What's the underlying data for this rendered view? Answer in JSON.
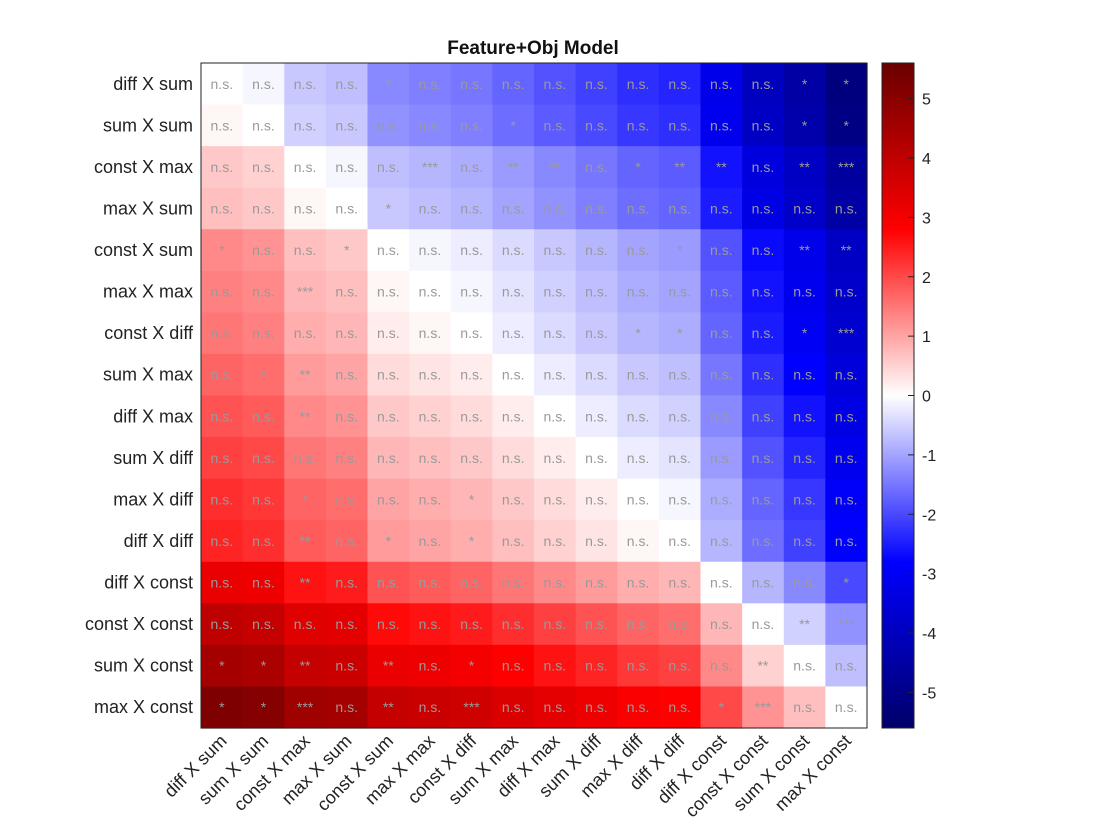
{
  "chart_data": {
    "type": "heatmap",
    "title": "Feature+Obj Model",
    "rows": [
      "diff X sum",
      "sum X sum",
      "const X max",
      "max X sum",
      "const X sum",
      "max X max",
      "const X diff",
      "sum X max",
      "diff X max",
      "sum X diff",
      "max X diff",
      "diff X diff",
      "diff X const",
      "const X const",
      "sum X const",
      "max X const"
    ],
    "columns": [
      "diff X sum",
      "sum X sum",
      "const X max",
      "max X sum",
      "const X sum",
      "max X max",
      "const X diff",
      "sum X max",
      "diff X max",
      "sum X diff",
      "max X diff",
      "diff X diff",
      "diff X const",
      "const X const",
      "sum X const",
      "max X const"
    ],
    "values": [
      [
        0,
        -0.1,
        -0.6,
        -0.7,
        -1.3,
        -1.4,
        -1.5,
        -1.7,
        -1.9,
        -2.1,
        -2.3,
        -2.4,
        -3.2,
        -4.0,
        -4.5,
        -5.2
      ],
      [
        0.1,
        0,
        -0.5,
        -0.6,
        -1.2,
        -1.3,
        -1.4,
        -1.6,
        -1.8,
        -2.0,
        -2.2,
        -2.3,
        -3.1,
        -3.9,
        -4.4,
        -5.1
      ],
      [
        0.6,
        0.5,
        0,
        -0.1,
        -0.7,
        -0.8,
        -0.9,
        -1.1,
        -1.3,
        -1.5,
        -1.7,
        -1.8,
        -2.6,
        -3.4,
        -3.9,
        -4.6
      ],
      [
        0.7,
        0.6,
        0.1,
        0,
        -0.6,
        -0.7,
        -0.8,
        -1.0,
        -1.2,
        -1.4,
        -1.6,
        -1.7,
        -2.5,
        -3.3,
        -3.8,
        -4.5
      ],
      [
        1.3,
        1.2,
        0.7,
        0.6,
        0,
        -0.1,
        -0.2,
        -0.4,
        -0.6,
        -0.8,
        -1.0,
        -1.1,
        -1.9,
        -2.7,
        -3.2,
        -3.9
      ],
      [
        1.4,
        1.3,
        0.8,
        0.7,
        0.1,
        0,
        -0.1,
        -0.3,
        -0.5,
        -0.7,
        -0.9,
        -1.0,
        -1.8,
        -2.6,
        -3.1,
        -3.8
      ],
      [
        1.5,
        1.4,
        0.9,
        0.8,
        0.2,
        0.1,
        0,
        -0.2,
        -0.4,
        -0.6,
        -0.8,
        -0.9,
        -1.7,
        -2.5,
        -3.0,
        -3.7
      ],
      [
        1.7,
        1.6,
        1.1,
        1.0,
        0.4,
        0.3,
        0.2,
        0,
        -0.2,
        -0.4,
        -0.6,
        -0.7,
        -1.5,
        -2.3,
        -2.8,
        -3.5
      ],
      [
        1.9,
        1.8,
        1.3,
        1.2,
        0.6,
        0.5,
        0.4,
        0.2,
        0,
        -0.2,
        -0.4,
        -0.5,
        -1.3,
        -2.1,
        -2.6,
        -3.3
      ],
      [
        2.1,
        2.0,
        1.5,
        1.4,
        0.8,
        0.7,
        0.6,
        0.4,
        0.2,
        0,
        -0.2,
        -0.3,
        -1.1,
        -1.9,
        -2.4,
        -3.1
      ],
      [
        2.3,
        2.2,
        1.7,
        1.6,
        1.0,
        0.9,
        0.8,
        0.6,
        0.4,
        0.2,
        0,
        -0.1,
        -0.9,
        -1.7,
        -2.2,
        -2.9
      ],
      [
        2.4,
        2.3,
        1.8,
        1.7,
        1.1,
        1.0,
        0.9,
        0.7,
        0.5,
        0.3,
        0.1,
        0,
        -0.8,
        -1.6,
        -2.1,
        -2.8
      ],
      [
        3.2,
        3.1,
        2.6,
        2.5,
        1.9,
        1.8,
        1.7,
        1.5,
        1.3,
        1.1,
        0.9,
        0.8,
        0,
        -0.8,
        -1.3,
        -2.0
      ],
      [
        4.0,
        3.9,
        3.4,
        3.3,
        2.7,
        2.6,
        2.5,
        2.3,
        2.1,
        1.9,
        1.7,
        1.6,
        0.8,
        0,
        -0.5,
        -1.2
      ],
      [
        4.5,
        4.4,
        3.9,
        3.8,
        3.2,
        3.1,
        3.0,
        2.8,
        2.6,
        2.4,
        2.2,
        2.1,
        1.3,
        0.5,
        0,
        -0.7
      ],
      [
        5.2,
        5.1,
        4.6,
        4.5,
        3.9,
        3.8,
        3.7,
        3.5,
        3.3,
        3.1,
        2.9,
        2.8,
        2.0,
        1.2,
        0.7,
        0
      ]
    ],
    "annotations": [
      [
        "n.s.",
        "n.s.",
        "n.s.",
        "n.s.",
        "*",
        "n.s.",
        "n.s.",
        "n.s.",
        "n.s.",
        "n.s.",
        "n.s.",
        "n.s.",
        "n.s.",
        "n.s.",
        "*",
        "*"
      ],
      [
        "n.s.",
        "n.s.",
        "n.s.",
        "n.s.",
        "n.s.",
        "n.s.",
        "n.s.",
        "*",
        "n.s.",
        "n.s.",
        "n.s.",
        "n.s.",
        "n.s.",
        "n.s.",
        "*",
        "*"
      ],
      [
        "n.s.",
        "n.s.",
        "n.s.",
        "n.s.",
        "n.s.",
        "***",
        "n.s.",
        "**",
        "**",
        "n.s.",
        "*",
        "**",
        "**",
        "n.s.",
        "**",
        "***"
      ],
      [
        "n.s.",
        "n.s.",
        "n.s.",
        "n.s.",
        "*",
        "n.s.",
        "n.s.",
        "n.s.",
        "n.s.",
        "n.s.",
        "n.s.",
        "n.s.",
        "n.s.",
        "n.s.",
        "n.s.",
        "n.s."
      ],
      [
        "*",
        "n.s.",
        "n.s.",
        "*",
        "n.s.",
        "n.s.",
        "n.s.",
        "n.s.",
        "n.s.",
        "n.s.",
        "n.s.",
        "*",
        "n.s.",
        "n.s.",
        "**",
        "**"
      ],
      [
        "n.s.",
        "n.s.",
        "***",
        "n.s.",
        "n.s.",
        "n.s.",
        "n.s.",
        "n.s.",
        "n.s.",
        "n.s.",
        "n.s.",
        "n.s.",
        "n.s.",
        "n.s.",
        "n.s.",
        "n.s."
      ],
      [
        "n.s.",
        "n.s.",
        "n.s.",
        "n.s.",
        "n.s.",
        "n.s.",
        "n.s.",
        "n.s.",
        "n.s.",
        "n.s.",
        "*",
        "*",
        "n.s.",
        "n.s.",
        "*",
        "***"
      ],
      [
        "n.s.",
        "*",
        "**",
        "n.s.",
        "n.s.",
        "n.s.",
        "n.s.",
        "n.s.",
        "n.s.",
        "n.s.",
        "n.s.",
        "n.s.",
        "n.s.",
        "n.s.",
        "n.s.",
        "n.s."
      ],
      [
        "n.s.",
        "n.s.",
        "**",
        "n.s.",
        "n.s.",
        "n.s.",
        "n.s.",
        "n.s.",
        "n.s.",
        "n.s.",
        "n.s.",
        "n.s.",
        "n.s.",
        "n.s.",
        "n.s.",
        "n.s."
      ],
      [
        "n.s.",
        "n.s.",
        "n.s.",
        "n.s.",
        "n.s.",
        "n.s.",
        "n.s.",
        "n.s.",
        "n.s.",
        "n.s.",
        "n.s.",
        "n.s.",
        "n.s.",
        "n.s.",
        "n.s.",
        "n.s."
      ],
      [
        "n.s.",
        "n.s.",
        "*",
        "n.s.",
        "n.s.",
        "n.s.",
        "*",
        "n.s.",
        "n.s.",
        "n.s.",
        "n.s.",
        "n.s.",
        "n.s.",
        "n.s.",
        "n.s.",
        "n.s."
      ],
      [
        "n.s.",
        "n.s.",
        "**",
        "n.s.",
        "*",
        "n.s.",
        "*",
        "n.s.",
        "n.s.",
        "n.s.",
        "n.s.",
        "n.s.",
        "n.s.",
        "n.s.",
        "n.s.",
        "n.s."
      ],
      [
        "n.s.",
        "n.s.",
        "**",
        "n.s.",
        "n.s.",
        "n.s.",
        "n.s.",
        "n.s.",
        "n.s.",
        "n.s.",
        "n.s.",
        "n.s.",
        "n.s.",
        "n.s.",
        "n.s.",
        "*"
      ],
      [
        "n.s.",
        "n.s.",
        "n.s.",
        "n.s.",
        "n.s.",
        "n.s.",
        "n.s.",
        "n.s.",
        "n.s.",
        "n.s.",
        "n.s.",
        "n.s.",
        "n.s.",
        "n.s.",
        "**",
        "***"
      ],
      [
        "*",
        "*",
        "**",
        "n.s.",
        "**",
        "n.s.",
        "*",
        "n.s.",
        "n.s.",
        "n.s.",
        "n.s.",
        "n.s.",
        "n.s.",
        "**",
        "n.s.",
        "n.s."
      ],
      [
        "*",
        "*",
        "***",
        "n.s.",
        "**",
        "n.s.",
        "***",
        "n.s.",
        "n.s.",
        "n.s.",
        "n.s.",
        "n.s.",
        "*",
        "***",
        "n.s.",
        "n.s."
      ]
    ],
    "colorbar": {
      "min": -5.6,
      "max": 5.6,
      "ticks": [
        -5,
        -4,
        -3,
        -2,
        -1,
        0,
        1,
        2,
        3,
        4,
        5
      ],
      "colormap": [
        "#00006a",
        "#0000ff",
        "#ffffff",
        "#ff0000",
        "#6a0000"
      ]
    },
    "annotation_color": "#9a9a9a"
  }
}
